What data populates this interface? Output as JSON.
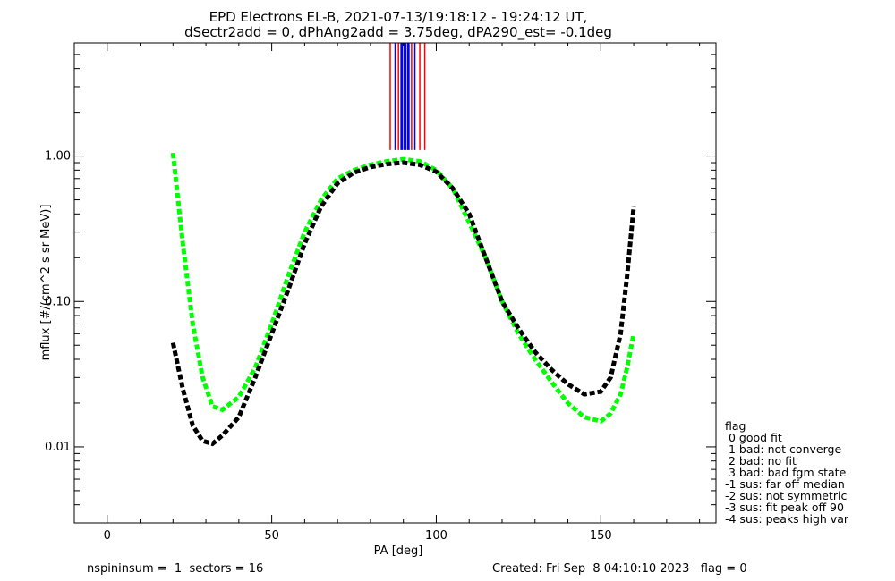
{
  "chart_data": {
    "type": "line",
    "title": "EPD Electrons EL-B, 2021-07-13/19:18:12 - 19:24:12 UT,",
    "subtitle": "dSectr2add = 0, dPhAng2add = 3.75deg, dPA290_est=  -0.1deg",
    "xlabel": "PA [deg]",
    "ylabel": "mflux [#/(cm^2 s sr MeV)]",
    "xlim": [
      -10,
      185
    ],
    "ylim": [
      0.003,
      6
    ],
    "yscale": "log",
    "x_ticks": [
      {
        "v": 0,
        "label": "0"
      },
      {
        "v": 50,
        "label": "50"
      },
      {
        "v": 100,
        "label": "100"
      },
      {
        "v": 150,
        "label": "150"
      }
    ],
    "y_ticks": [
      {
        "v": 0.01,
        "label": "0.01"
      },
      {
        "v": 0.1,
        "label": "0.10"
      },
      {
        "v": 1,
        "label": "1.00"
      }
    ],
    "grid": false,
    "colors": {
      "red": "#ff0000",
      "blue": "#0000ff",
      "green": "#00ff00",
      "black": "#000000"
    },
    "series": [
      {
        "color": "#00ff00",
        "style": "dashed-thick",
        "x": [
          20,
          23,
          26,
          29,
          32,
          35,
          40,
          45,
          50,
          55,
          60,
          65,
          70,
          75,
          80,
          85,
          90,
          95,
          100,
          105,
          110,
          115,
          120,
          125,
          130,
          135,
          140,
          145,
          150,
          153,
          156,
          158,
          160
        ],
        "y": [
          1.05,
          0.25,
          0.07,
          0.03,
          0.019,
          0.018,
          0.022,
          0.035,
          0.07,
          0.15,
          0.3,
          0.5,
          0.7,
          0.8,
          0.87,
          0.92,
          0.95,
          0.92,
          0.8,
          0.6,
          0.35,
          0.2,
          0.1,
          0.06,
          0.04,
          0.028,
          0.02,
          0.016,
          0.015,
          0.017,
          0.023,
          0.035,
          0.06
        ]
      },
      {
        "color": "#000000",
        "style": "dashed-thick",
        "x": [
          20,
          23,
          26,
          29,
          32,
          35,
          40,
          45,
          50,
          55,
          60,
          65,
          70,
          75,
          80,
          85,
          90,
          95,
          100,
          105,
          110,
          115,
          120,
          125,
          130,
          135,
          140,
          145,
          150,
          153,
          156,
          158,
          160
        ],
        "y": [
          0.052,
          0.025,
          0.014,
          0.011,
          0.0105,
          0.012,
          0.016,
          0.03,
          0.06,
          0.12,
          0.25,
          0.45,
          0.65,
          0.77,
          0.84,
          0.88,
          0.9,
          0.87,
          0.78,
          0.6,
          0.4,
          0.2,
          0.1,
          0.065,
          0.045,
          0.034,
          0.027,
          0.023,
          0.024,
          0.03,
          0.06,
          0.15,
          0.45
        ]
      }
    ],
    "vertical_lines": {
      "x": [
        86,
        87.5,
        88.5,
        89.5,
        90.5,
        91.5,
        92.5,
        93.5,
        95,
        96.5
      ],
      "colors": [
        "#ff0000",
        "#0000ff",
        "#ff0000",
        "#0000ff",
        "#0000ff",
        "#0000ff",
        "#ff0000",
        "#0000ff",
        "#ff0000",
        "#ff0000"
      ],
      "y_from": 1.1,
      "y_to": 6
    },
    "legend": {
      "placement": "right-bottom",
      "title": "flag",
      "entries": [
        " 0 good fit",
        " 1 bad: not converge",
        " 2 bad: no fit",
        " 3 bad: bad fgm state",
        "-1 sus: far off median",
        "-2 sus: not symmetric",
        "-3 sus: fit peak off 90",
        "-4 sus: peaks high var"
      ]
    }
  },
  "footer": {
    "left": "nspininsum =  1  sectors = 16",
    "right": "Created: Fri Sep  8 04:10:10 2023   flag = 0"
  }
}
